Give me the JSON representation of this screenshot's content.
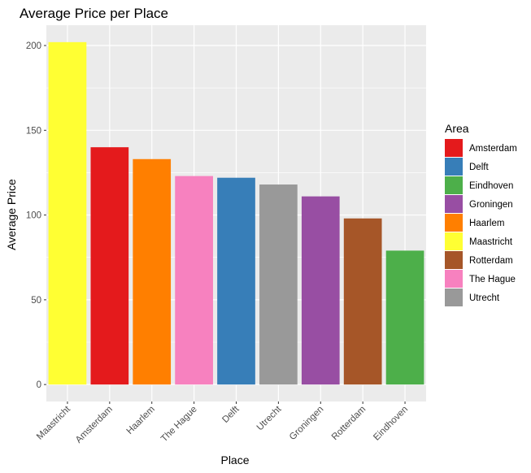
{
  "chart_data": {
    "type": "bar",
    "title": "Average Price per Place",
    "xlabel": "Place",
    "ylabel": "Average Price",
    "categories": [
      "Maastricht",
      "Amsterdam",
      "Haarlem",
      "The Hague",
      "Delft",
      "Utrecht",
      "Groningen",
      "Rotterdam",
      "Eindhoven"
    ],
    "values": [
      202,
      140,
      133,
      123,
      122,
      118,
      111,
      98,
      79
    ],
    "ylim": [
      -10,
      212
    ],
    "yticks": [
      0,
      50,
      100,
      150,
      200
    ],
    "grid": true,
    "legend": {
      "title": "Area",
      "placement": "right",
      "entries": [
        {
          "label": "Amsterdam",
          "color": "#E41A1C"
        },
        {
          "label": "Delft",
          "color": "#377EB8"
        },
        {
          "label": "Eindhoven",
          "color": "#4DAF4A"
        },
        {
          "label": "Groningen",
          "color": "#984EA3"
        },
        {
          "label": "Haarlem",
          "color": "#FF7F00"
        },
        {
          "label": "Maastricht",
          "color": "#FFFF33"
        },
        {
          "label": "Rotterdam",
          "color": "#A65628"
        },
        {
          "label": "The Hague",
          "color": "#F781BF"
        },
        {
          "label": "Utrecht",
          "color": "#999999"
        }
      ]
    },
    "panel_background": "#EBEBEB",
    "grid_color": "#FFFFFF"
  }
}
